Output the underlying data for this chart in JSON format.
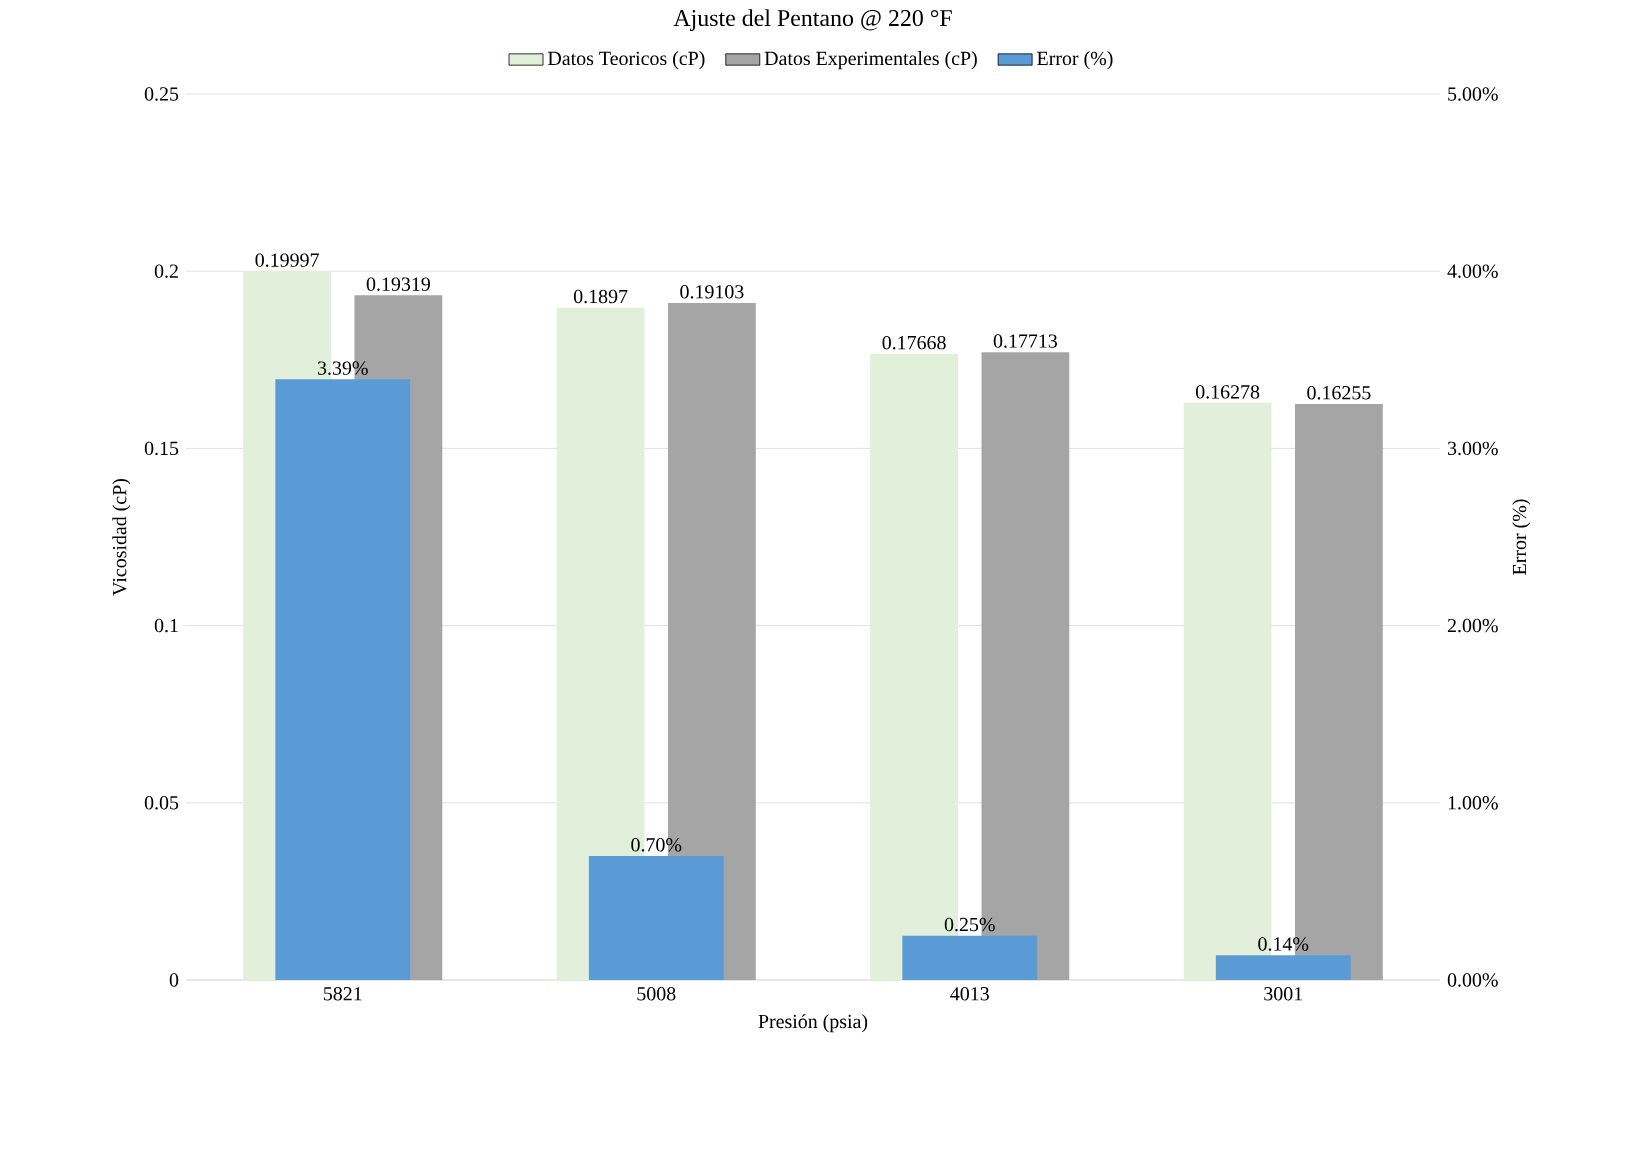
{
  "chart_data": {
    "type": "bar",
    "title": "Ajuste del Pentano @ 220 °F",
    "xlabel": "Presión (psia)",
    "ylabel": "Vicosidad (cP)",
    "y2label": "Error (%)",
    "categories": [
      "5821",
      "5008",
      "4013",
      "3001"
    ],
    "series": [
      {
        "name": "Datos Teoricos (cP)",
        "color": "#e2efda",
        "values": [
          0.19997,
          0.1897,
          0.17668,
          0.16278
        ]
      },
      {
        "name": "Datos Experimentales (cP)",
        "color": "#a5a5a5",
        "values": [
          0.19319,
          0.19103,
          0.17713,
          0.16255
        ]
      },
      {
        "name": "Error (%)",
        "color": "#5b9bd5",
        "axis": "y2",
        "values": [
          3.39,
          0.7,
          0.25,
          0.14
        ],
        "value_labels": [
          "3.39%",
          "0.70%",
          "0.25%",
          "0.14%"
        ]
      }
    ],
    "ylim": [
      0,
      0.25
    ],
    "yticks": [
      0,
      0.05,
      0.1,
      0.15,
      0.2,
      0.25
    ],
    "y2lim": [
      0,
      5
    ],
    "y2ticks": [
      {
        "value": 0,
        "label": "0.00%"
      },
      {
        "value": 1,
        "label": "1.00%"
      },
      {
        "value": 2,
        "label": "2.00%"
      },
      {
        "value": 3,
        "label": "3.00%"
      },
      {
        "value": 4,
        "label": "4.00%"
      },
      {
        "value": 5,
        "label": "5.00%"
      }
    ],
    "grid": "y",
    "legend": "top",
    "data_labels": true
  }
}
